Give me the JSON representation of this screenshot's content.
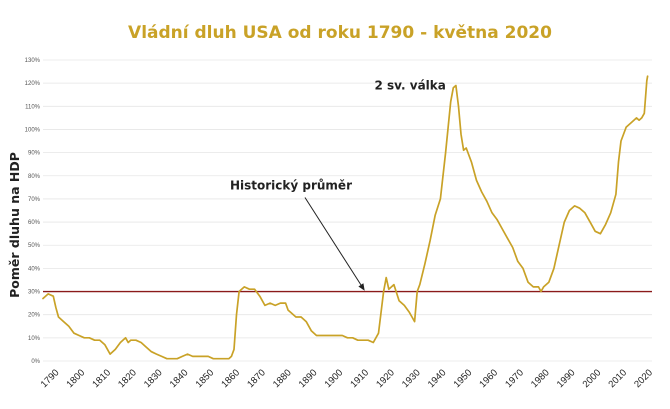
{
  "chart_data": {
    "type": "line",
    "title": "Vládní dluh USA od roku 1790 - května 2020",
    "xlabel": "",
    "ylabel": "Poměr dluhu na HDP",
    "xlim": [
      1786,
      2022
    ],
    "ylim": [
      0,
      130
    ],
    "yticks": [
      "0%",
      "10%",
      "20%",
      "30%",
      "40%",
      "50%",
      "60%",
      "70%",
      "80%",
      "90%",
      "100%",
      "110%",
      "120%",
      "130%"
    ],
    "xticks": [
      "1790",
      "1800",
      "1810",
      "1820",
      "1830",
      "1840",
      "1850",
      "1860",
      "1870",
      "1880",
      "1890",
      "1900",
      "1910",
      "1920",
      "1930",
      "1940",
      "1950",
      "1960",
      "1970",
      "1980",
      "1990",
      "2000",
      "2010",
      "2020"
    ],
    "grid": "horizontal",
    "colors": {
      "series": "#c9a227",
      "reference": "#8b1a1a",
      "title": "#c9a227",
      "grid": "#e6e6e6"
    },
    "series": [
      {
        "values": [
          [
            1786,
            27
          ],
          [
            1788,
            29
          ],
          [
            1790,
            28
          ],
          [
            1791,
            23
          ],
          [
            1792,
            19
          ],
          [
            1794,
            17
          ],
          [
            1796,
            15
          ],
          [
            1798,
            12
          ],
          [
            1800,
            11
          ],
          [
            1802,
            10
          ],
          [
            1804,
            10
          ],
          [
            1806,
            9
          ],
          [
            1808,
            9
          ],
          [
            1810,
            7
          ],
          [
            1811,
            5
          ],
          [
            1812,
            3
          ],
          [
            1814,
            5
          ],
          [
            1816,
            8
          ],
          [
            1818,
            10
          ],
          [
            1819,
            8
          ],
          [
            1820,
            9
          ],
          [
            1822,
            9
          ],
          [
            1824,
            8
          ],
          [
            1826,
            6
          ],
          [
            1828,
            4
          ],
          [
            1830,
            3
          ],
          [
            1832,
            2
          ],
          [
            1834,
            1
          ],
          [
            1836,
            1
          ],
          [
            1838,
            1
          ],
          [
            1840,
            2
          ],
          [
            1842,
            3
          ],
          [
            1844,
            2
          ],
          [
            1846,
            2
          ],
          [
            1848,
            2
          ],
          [
            1850,
            2
          ],
          [
            1852,
            1
          ],
          [
            1854,
            1
          ],
          [
            1856,
            1
          ],
          [
            1858,
            1
          ],
          [
            1859,
            2
          ],
          [
            1860,
            5
          ],
          [
            1861,
            20
          ],
          [
            1862,
            30
          ],
          [
            1864,
            32
          ],
          [
            1866,
            31
          ],
          [
            1868,
            31
          ],
          [
            1870,
            28
          ],
          [
            1872,
            24
          ],
          [
            1874,
            25
          ],
          [
            1876,
            24
          ],
          [
            1878,
            25
          ],
          [
            1880,
            25
          ],
          [
            1881,
            22
          ],
          [
            1882,
            21
          ],
          [
            1884,
            19
          ],
          [
            1886,
            19
          ],
          [
            1888,
            17
          ],
          [
            1890,
            13
          ],
          [
            1892,
            11
          ],
          [
            1894,
            11
          ],
          [
            1896,
            11
          ],
          [
            1898,
            11
          ],
          [
            1900,
            11
          ],
          [
            1902,
            11
          ],
          [
            1904,
            10
          ],
          [
            1906,
            10
          ],
          [
            1908,
            9
          ],
          [
            1910,
            9
          ],
          [
            1912,
            9
          ],
          [
            1914,
            8
          ],
          [
            1916,
            12
          ],
          [
            1918,
            30
          ],
          [
            1919,
            36
          ],
          [
            1920,
            31
          ],
          [
            1922,
            33
          ],
          [
            1924,
            26
          ],
          [
            1926,
            24
          ],
          [
            1928,
            21
          ],
          [
            1929,
            19
          ],
          [
            1930,
            17
          ],
          [
            1931,
            30
          ],
          [
            1932,
            33
          ],
          [
            1934,
            42
          ],
          [
            1936,
            52
          ],
          [
            1938,
            63
          ],
          [
            1940,
            70
          ],
          [
            1942,
            90
          ],
          [
            1944,
            112
          ],
          [
            1945,
            118
          ],
          [
            1946,
            119
          ],
          [
            1947,
            110
          ],
          [
            1948,
            98
          ],
          [
            1949,
            91
          ],
          [
            1950,
            92
          ],
          [
            1952,
            86
          ],
          [
            1954,
            78
          ],
          [
            1956,
            73
          ],
          [
            1958,
            69
          ],
          [
            1960,
            64
          ],
          [
            1962,
            61
          ],
          [
            1964,
            57
          ],
          [
            1966,
            53
          ],
          [
            1968,
            49
          ],
          [
            1970,
            43
          ],
          [
            1972,
            40
          ],
          [
            1974,
            34
          ],
          [
            1976,
            32
          ],
          [
            1978,
            32
          ],
          [
            1979,
            30
          ],
          [
            1980,
            32
          ],
          [
            1982,
            34
          ],
          [
            1984,
            40
          ],
          [
            1986,
            50
          ],
          [
            1988,
            60
          ],
          [
            1990,
            65
          ],
          [
            1992,
            67
          ],
          [
            1994,
            66
          ],
          [
            1996,
            64
          ],
          [
            1998,
            60
          ],
          [
            2000,
            56
          ],
          [
            2002,
            55
          ],
          [
            2004,
            59
          ],
          [
            2006,
            64
          ],
          [
            2008,
            72
          ],
          [
            2009,
            86
          ],
          [
            2010,
            95
          ],
          [
            2012,
            101
          ],
          [
            2014,
            103
          ],
          [
            2016,
            105
          ],
          [
            2017,
            104
          ],
          [
            2018,
            105
          ],
          [
            2019,
            107
          ],
          [
            2020,
            121
          ],
          [
            2020.3,
            123
          ]
        ]
      }
    ],
    "reference_line": {
      "y": 30
    },
    "annotations": [
      {
        "text": "2 sv. válka",
        "x": 1946,
        "y": 119
      },
      {
        "text": "Historický průměr",
        "x": 1910,
        "y": 30
      }
    ]
  }
}
